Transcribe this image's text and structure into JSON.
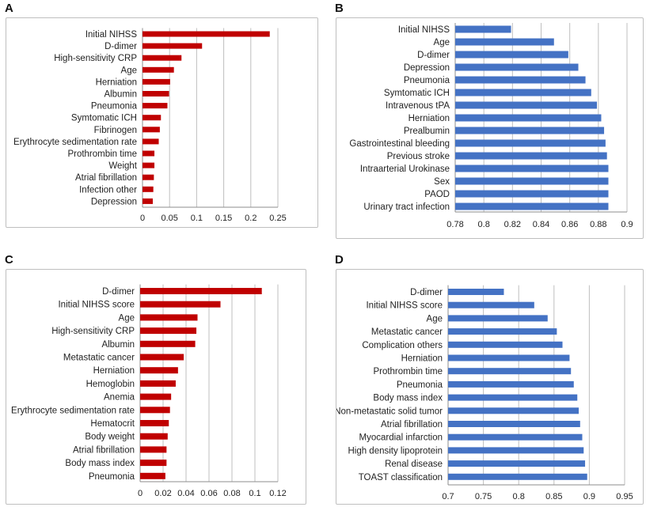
{
  "panels": [
    {
      "letter": "A",
      "label": "A"
    },
    {
      "letter": "B",
      "label": "B"
    },
    {
      "letter": "C",
      "label": "C"
    },
    {
      "letter": "D",
      "label": "D"
    }
  ],
  "colors": {
    "red": "#c00000",
    "blue": "#4472c4",
    "grid": "#bfbfbf",
    "axis": "#8c8c8c"
  },
  "chart_data": [
    {
      "panel": "A",
      "type": "bar",
      "orientation": "horizontal",
      "color": "red",
      "categories": [
        "Initial NIHSS",
        "D-dimer",
        "High-sensitivity CRP",
        "Age",
        "Herniation",
        "Albumin",
        "Pneumonia",
        "Symtomatic ICH",
        "Fibrinogen",
        "Erythrocyte sedimentation rate",
        "Prothrombin time",
        "Weight",
        "Atrial fibrillation",
        "Infection other",
        "Depression"
      ],
      "values": [
        0.235,
        0.11,
        0.072,
        0.058,
        0.051,
        0.049,
        0.046,
        0.034,
        0.032,
        0.03,
        0.022,
        0.022,
        0.021,
        0.02,
        0.019
      ],
      "ticks": [
        "0",
        "0.05",
        "0.1",
        "0.15",
        "0.2",
        "0.25"
      ],
      "xlim": [
        0,
        0.25
      ],
      "grid": true
    },
    {
      "panel": "B",
      "type": "bar",
      "orientation": "horizontal",
      "color": "blue",
      "categories": [
        "Initial NIHSS",
        "Age",
        "D-dimer",
        "Depression",
        "Pneumonia",
        "Symtomatic ICH",
        "Intravenous tPA",
        "Herniation",
        "Prealbumin",
        "Gastrointestinal bleeding",
        "Previous stroke",
        "Intraarterial Urokinase",
        "Sex",
        "PAOD",
        "Urinary tract infection"
      ],
      "values": [
        0.819,
        0.849,
        0.859,
        0.866,
        0.871,
        0.875,
        0.879,
        0.882,
        0.884,
        0.885,
        0.886,
        0.887,
        0.887,
        0.887,
        0.887
      ],
      "ticks": [
        "0.78",
        "0.8",
        "0.82",
        "0.84",
        "0.86",
        "0.88",
        "0.9"
      ],
      "xlim": [
        0.78,
        0.9
      ],
      "grid": true
    },
    {
      "panel": "C",
      "type": "bar",
      "orientation": "horizontal",
      "color": "red",
      "categories": [
        "D-dimer",
        "Initial NIHSS score",
        "Age",
        "High-sensitivity CRP",
        "Albumin",
        "Metastatic cancer",
        "Herniation",
        "Hemoglobin",
        "Anemia",
        "Erythrocyte sedimentation rate",
        "Hematocrit",
        "Body weight",
        "Atrial fibrillation",
        "Body mass index",
        "Pneumonia"
      ],
      "values": [
        0.106,
        0.07,
        0.05,
        0.049,
        0.048,
        0.038,
        0.033,
        0.031,
        0.027,
        0.026,
        0.025,
        0.024,
        0.023,
        0.023,
        0.022
      ],
      "ticks": [
        "0",
        "0.02",
        "0.04",
        "0.06",
        "0.08",
        "0.1",
        "0.12"
      ],
      "xlim": [
        0,
        0.12
      ],
      "grid": true
    },
    {
      "panel": "D",
      "type": "bar",
      "orientation": "horizontal",
      "color": "blue",
      "categories": [
        "D-dimer",
        "Initial NIHSS score",
        "Age",
        "Metastatic cancer",
        "Complication others",
        "Herniation",
        "Prothrombin time",
        "Pneumonia",
        "Body mass index",
        "Non-metastatic solid tumor",
        "Atrial fibrillation",
        "Myocardial infarction",
        "High density lipoprotein",
        "Renal disease",
        "TOAST classification"
      ],
      "values": [
        0.779,
        0.822,
        0.841,
        0.854,
        0.862,
        0.872,
        0.874,
        0.878,
        0.883,
        0.885,
        0.887,
        0.89,
        0.892,
        0.894,
        0.897
      ],
      "ticks": [
        "0.7",
        "0.75",
        "0.8",
        "0.85",
        "0.9",
        "0.95"
      ],
      "xlim": [
        0.7,
        0.95
      ],
      "grid": true
    }
  ]
}
